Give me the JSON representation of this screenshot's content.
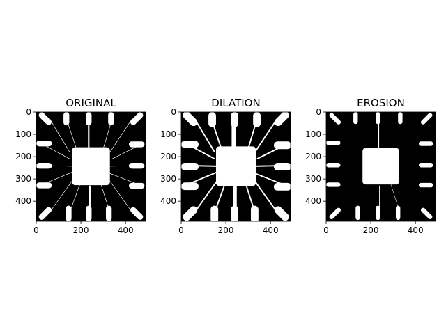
{
  "figure": {
    "background": "#ffffff"
  },
  "chart_data": [
    {
      "type": "image",
      "title": "ORIGINAL",
      "variant": "original",
      "xticks": [
        0,
        200,
        400
      ],
      "yticks": [
        0,
        100,
        200,
        300,
        400
      ],
      "xlim": [
        0,
        490
      ],
      "ylim": [
        490,
        0
      ],
      "colormap": "gray",
      "image_size": [
        490,
        490
      ]
    },
    {
      "type": "image",
      "title": "DILATION",
      "variant": "dilation",
      "xticks": [
        0,
        200,
        400
      ],
      "yticks": [
        0,
        100,
        200,
        300,
        400
      ],
      "xlim": [
        0,
        490
      ],
      "ylim": [
        490,
        0
      ],
      "colormap": "gray",
      "image_size": [
        490,
        490
      ]
    },
    {
      "type": "image",
      "title": "EROSION",
      "variant": "erosion",
      "xticks": [
        0,
        200,
        400
      ],
      "yticks": [
        0,
        100,
        200,
        300,
        400
      ],
      "xlim": [
        0,
        490
      ],
      "ylim": [
        490,
        0
      ],
      "colormap": "gray",
      "image_size": [
        490,
        490
      ]
    }
  ]
}
